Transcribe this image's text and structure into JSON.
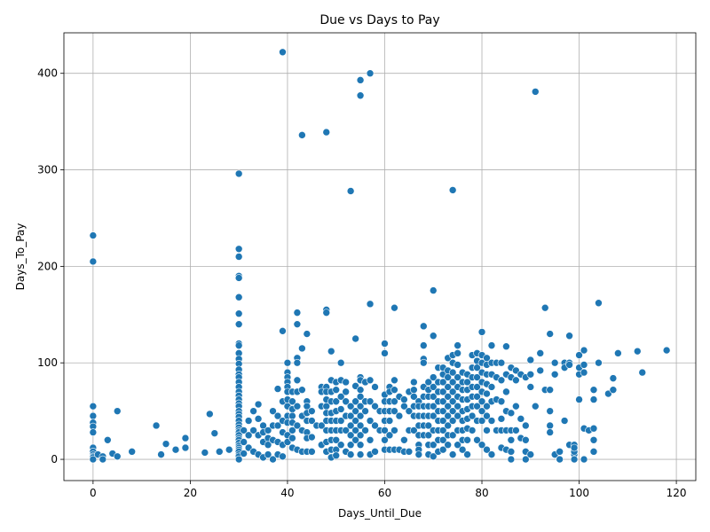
{
  "chart_data": {
    "type": "scatter",
    "title": "Due vs Days to Pay",
    "xlabel": "Days_Until_Due",
    "ylabel": "Days_To_Pay",
    "xlim": [
      -6,
      124
    ],
    "ylim": [
      -22,
      442
    ],
    "xticks": [
      0,
      20,
      40,
      60,
      80,
      100,
      120
    ],
    "yticks": [
      0,
      100,
      200,
      300,
      400
    ],
    "grid": true,
    "legend": "none",
    "color": "#1f77b4",
    "x": [
      0,
      0,
      0,
      0,
      0,
      0,
      0,
      0,
      0,
      0,
      0,
      0,
      0,
      1,
      2,
      2,
      3,
      4,
      5,
      5,
      8,
      13,
      14,
      15,
      17,
      19,
      19,
      23,
      24,
      25,
      26,
      28,
      30,
      30,
      30,
      30,
      30,
      30,
      30,
      30,
      30,
      30,
      30,
      30,
      30,
      30,
      30,
      30,
      30,
      30,
      30,
      30,
      30,
      30,
      30,
      30,
      30,
      30,
      30,
      30,
      30,
      30,
      30,
      30,
      30,
      30,
      30,
      30,
      30,
      30,
      30,
      30,
      30,
      30,
      31,
      31,
      31,
      32,
      32,
      32,
      33,
      33,
      33,
      34,
      34,
      34,
      34,
      35,
      35,
      35,
      35,
      36,
      36,
      36,
      36,
      37,
      37,
      37,
      37,
      38,
      38,
      38,
      38,
      38,
      39,
      39,
      39,
      39,
      39,
      39,
      39,
      40,
      40,
      40,
      40,
      40,
      40,
      40,
      40,
      40,
      40,
      40,
      40,
      41,
      41,
      41,
      41,
      41,
      41,
      41,
      41,
      42,
      42,
      42,
      42,
      42,
      42,
      42,
      42,
      42,
      43,
      43,
      43,
      43,
      43,
      43,
      44,
      44,
      44,
      44,
      44,
      44,
      44,
      44,
      45,
      45,
      45,
      45,
      46,
      47,
      47,
      47,
      47,
      47,
      48,
      48,
      48,
      48,
      48,
      48,
      48,
      48,
      48,
      48,
      48,
      48,
      49,
      49,
      49,
      49,
      49,
      49,
      49,
      49,
      49,
      49,
      50,
      50,
      50,
      50,
      50,
      50,
      50,
      50,
      50,
      51,
      51,
      51,
      51,
      51,
      51,
      51,
      52,
      52,
      52,
      52,
      52,
      52,
      53,
      53,
      53,
      53,
      53,
      53,
      53,
      54,
      54,
      54,
      54,
      54,
      54,
      54,
      55,
      55,
      55,
      55,
      55,
      55,
      55,
      55,
      55,
      55,
      55,
      55,
      56,
      56,
      56,
      56,
      57,
      57,
      57,
      57,
      57,
      57,
      57,
      58,
      58,
      58,
      58,
      59,
      59,
      60,
      60,
      60,
      60,
      60,
      60,
      60,
      60,
      60,
      61,
      61,
      61,
      61,
      61,
      61,
      61,
      62,
      62,
      62,
      62,
      62,
      62,
      62,
      63,
      63,
      63,
      64,
      64,
      64,
      64,
      65,
      65,
      65,
      65,
      66,
      66,
      66,
      66,
      66,
      66,
      67,
      67,
      67,
      67,
      67,
      67,
      67,
      67,
      68,
      68,
      68,
      68,
      68,
      68,
      68,
      68,
      68,
      68,
      69,
      69,
      69,
      69,
      69,
      69,
      69,
      69,
      69,
      70,
      70,
      70,
      70,
      70,
      70,
      70,
      70,
      70,
      70,
      71,
      71,
      71,
      71,
      71,
      71,
      71,
      71,
      71,
      72,
      72,
      72,
      72,
      72,
      72,
      72,
      72,
      72,
      72,
      73,
      73,
      73,
      73,
      73,
      73,
      73,
      73,
      73,
      73,
      74,
      74,
      74,
      74,
      74,
      74,
      74,
      74,
      74,
      74,
      74,
      75,
      75,
      75,
      75,
      75,
      75,
      75,
      75,
      75,
      75,
      76,
      76,
      76,
      76,
      76,
      76,
      76,
      76,
      76,
      77,
      77,
      77,
      77,
      77,
      77,
      77,
      77,
      77,
      78,
      78,
      78,
      78,
      78,
      78,
      78,
      78,
      79,
      79,
      79,
      79,
      79,
      79,
      79,
      79,
      79,
      80,
      80,
      80,
      80,
      80,
      80,
      80,
      80,
      80,
      80,
      81,
      81,
      81,
      81,
      81,
      81,
      81,
      81,
      81,
      82,
      82,
      82,
      82,
      82,
      82,
      82,
      83,
      83,
      83,
      83,
      84,
      84,
      84,
      84,
      84,
      84,
      85,
      85,
      85,
      85,
      85,
      85,
      86,
      86,
      86,
      86,
      86,
      86,
      86,
      87,
      87,
      87,
      87,
      88,
      88,
      88,
      89,
      89,
      89,
      89,
      89,
      90,
      90,
      90,
      90,
      91,
      91,
      92,
      92,
      93,
      93,
      94,
      94,
      94,
      94,
      94,
      95,
      95,
      95,
      96,
      96,
      97,
      97,
      97,
      98,
      98,
      98,
      98,
      99,
      99,
      99,
      99,
      99,
      100,
      100,
      100,
      100,
      101,
      101,
      101,
      101,
      101,
      102,
      103,
      103,
      103,
      103,
      103,
      104,
      104,
      106,
      107,
      107,
      108,
      112,
      113,
      118
    ],
    "y": [
      232,
      205,
      55,
      45,
      38,
      34,
      28,
      12,
      8,
      5,
      3,
      2,
      0,
      5,
      3,
      0,
      20,
      6,
      50,
      3,
      8,
      35,
      5,
      16,
      10,
      22,
      12,
      7,
      47,
      27,
      8,
      10,
      296,
      218,
      210,
      190,
      188,
      168,
      151,
      140,
      120,
      118,
      110,
      104,
      99,
      93,
      88,
      85,
      80,
      75,
      70,
      66,
      62,
      58,
      55,
      50,
      47,
      44,
      40,
      36,
      33,
      30,
      28,
      25,
      22,
      20,
      17,
      14,
      12,
      10,
      8,
      5,
      3,
      0,
      30,
      18,
      6,
      40,
      25,
      12,
      50,
      30,
      8,
      57,
      42,
      25,
      5,
      35,
      28,
      18,
      2,
      30,
      22,
      15,
      5,
      50,
      35,
      20,
      0,
      73,
      45,
      35,
      18,
      5,
      422,
      133,
      60,
      40,
      28,
      15,
      3,
      100,
      90,
      85,
      80,
      75,
      70,
      62,
      55,
      45,
      38,
      25,
      18,
      70,
      60,
      52,
      45,
      38,
      30,
      22,
      12,
      152,
      140,
      105,
      100,
      82,
      70,
      55,
      35,
      10,
      336,
      115,
      72,
      45,
      30,
      8,
      130,
      60,
      55,
      48,
      40,
      28,
      22,
      8,
      50,
      40,
      23,
      8,
      35,
      75,
      70,
      55,
      35,
      15,
      339,
      155,
      152,
      75,
      70,
      62,
      55,
      48,
      40,
      30,
      18,
      8,
      112,
      82,
      70,
      60,
      48,
      40,
      30,
      20,
      10,
      2,
      80,
      72,
      60,
      50,
      40,
      30,
      20,
      10,
      4,
      100,
      82,
      65,
      52,
      40,
      30,
      15,
      80,
      70,
      60,
      45,
      30,
      8,
      278,
      55,
      45,
      35,
      25,
      15,
      5,
      125,
      76,
      60,
      50,
      40,
      30,
      20,
      393,
      377,
      85,
      82,
      72,
      65,
      55,
      45,
      35,
      25,
      15,
      5,
      80,
      60,
      50,
      30,
      400,
      161,
      82,
      60,
      40,
      20,
      5,
      75,
      55,
      35,
      8,
      50,
      30,
      120,
      110,
      67,
      60,
      50,
      40,
      30,
      20,
      10,
      75,
      70,
      60,
      50,
      40,
      25,
      10,
      157,
      82,
      72,
      60,
      50,
      30,
      10,
      65,
      45,
      10,
      62,
      55,
      20,
      8,
      70,
      50,
      30,
      8,
      80,
      72,
      65,
      55,
      45,
      30,
      60,
      55,
      45,
      35,
      25,
      15,
      10,
      5,
      138,
      118,
      104,
      100,
      75,
      65,
      55,
      45,
      35,
      25,
      80,
      72,
      65,
      55,
      45,
      35,
      25,
      15,
      5,
      175,
      128,
      85,
      75,
      65,
      55,
      45,
      30,
      15,
      3,
      95,
      80,
      70,
      60,
      50,
      40,
      30,
      20,
      8,
      95,
      88,
      80,
      70,
      60,
      50,
      40,
      30,
      20,
      10,
      105,
      92,
      85,
      75,
      65,
      55,
      45,
      35,
      25,
      15,
      279,
      108,
      100,
      90,
      80,
      70,
      60,
      50,
      40,
      25,
      5,
      118,
      110,
      98,
      85,
      75,
      65,
      55,
      45,
      30,
      15,
      90,
      80,
      72,
      62,
      50,
      40,
      30,
      20,
      10,
      88,
      80,
      72,
      62,
      52,
      42,
      32,
      20,
      5,
      108,
      95,
      85,
      75,
      65,
      55,
      45,
      30,
      110,
      102,
      95,
      85,
      75,
      65,
      55,
      40,
      20,
      132,
      108,
      100,
      90,
      80,
      70,
      60,
      50,
      40,
      15,
      105,
      98,
      88,
      78,
      68,
      55,
      45,
      30,
      10,
      118,
      100,
      88,
      75,
      60,
      40,
      5,
      100,
      85,
      62,
      30,
      100,
      82,
      60,
      42,
      30,
      12,
      117,
      88,
      70,
      50,
      30,
      10,
      95,
      85,
      48,
      30,
      20,
      8,
      0,
      92,
      82,
      55,
      30,
      88,
      42,
      22,
      85,
      35,
      20,
      8,
      0,
      103,
      88,
      75,
      5,
      381,
      55,
      110,
      92,
      157,
      72,
      130,
      72,
      50,
      35,
      28,
      100,
      88,
      5,
      8,
      0,
      100,
      40,
      95,
      128,
      100,
      98,
      15,
      15,
      5,
      8,
      12,
      0,
      108,
      95,
      88,
      62,
      0,
      113,
      98,
      90,
      32,
      30,
      32,
      72,
      62,
      20,
      8,
      100,
      162,
      68,
      84,
      72,
      110,
      112,
      90,
      113
    ]
  }
}
